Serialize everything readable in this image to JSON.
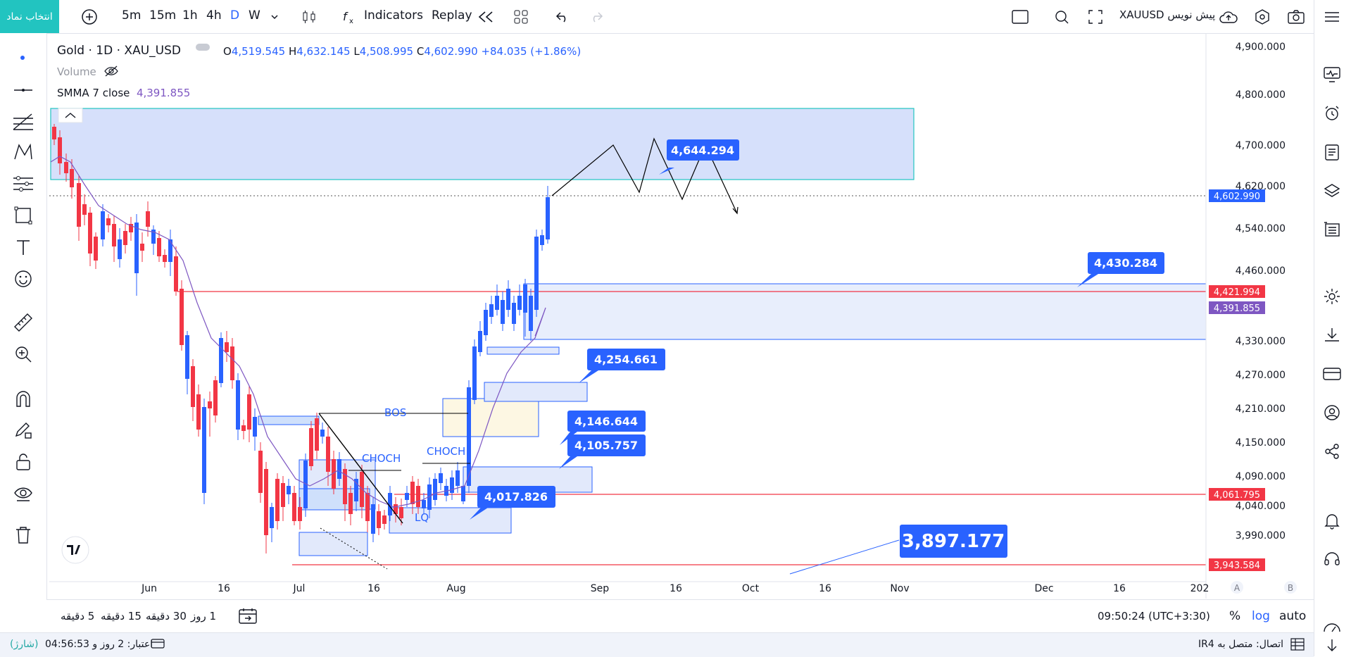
{
  "toolbar": {
    "symbol_select": "انتخاب نماد",
    "intervals": [
      "5m",
      "15m",
      "1h",
      "4h",
      "D",
      "W"
    ],
    "active_interval": "D",
    "indicators": "Indicators",
    "replay": "Replay",
    "symbol_label": "XAUUSD پیش نویس"
  },
  "legend": {
    "title": "Gold · 1D · XAU_USD",
    "open_l": "O",
    "open": "4,519.545",
    "high_l": "H",
    "high": "4,632.145",
    "low_l": "L",
    "low": "4,508.995",
    "close_l": "C",
    "close": "4,602.990",
    "change": "+84.035 (+1.86%)",
    "volume": "Volume",
    "smma": "SMMA 7 close",
    "smma_value": "4,391.855"
  },
  "chart_data": {
    "type": "candlestick",
    "symbol": "XAU_USD",
    "interval": "1D",
    "price_axis": [
      "4,900.000",
      "4,800.000",
      "4,700.000",
      "4,620.000",
      "4,540.000",
      "4,460.000",
      "4,330.000",
      "4,270.000",
      "4,210.000",
      "4,150.000",
      "4,090.000",
      "4,040.000",
      "3,990.000"
    ],
    "time_axis": [
      "Jun",
      "16",
      "Jul",
      "16",
      "Aug",
      "Sep",
      "16",
      "Oct",
      "16",
      "Nov",
      "Dec",
      "16",
      "202"
    ],
    "price_badges": [
      {
        "value": "4,602.990",
        "color": "#2962ff"
      },
      {
        "value": "4,421.994",
        "color": "#f23645"
      },
      {
        "value": "4,391.855",
        "color": "#7e57c2"
      },
      {
        "value": "4,061.795",
        "color": "#f23645"
      },
      {
        "value": "3,943.584",
        "color": "#f23645"
      }
    ],
    "callouts": [
      "4,644.294",
      "4,430.284",
      "4,254.661",
      "4,146.644",
      "4,105.757",
      "4,017.826",
      "3,897.177"
    ],
    "annotations": [
      "BOS",
      "CHOCH",
      "CHOCH",
      "LQ"
    ],
    "scale_labels": [
      "A",
      "B"
    ],
    "colors": {
      "up": "#2962ff",
      "down": "#f23645",
      "smma": "#7e57c2"
    }
  },
  "bottom": {
    "ranges": [
      "5 دقیقه",
      "15 دقیقه",
      "30 دقیقه",
      "1 روز"
    ],
    "time": "09:50:24 (UTC+3:30)",
    "percent": "%",
    "log": "log",
    "auto": "auto"
  },
  "status": {
    "credit": "اعتبار: 2 روز و 04:56:53",
    "charge": "(شارژ)",
    "connection": "اتصال: متصل به IR4"
  }
}
